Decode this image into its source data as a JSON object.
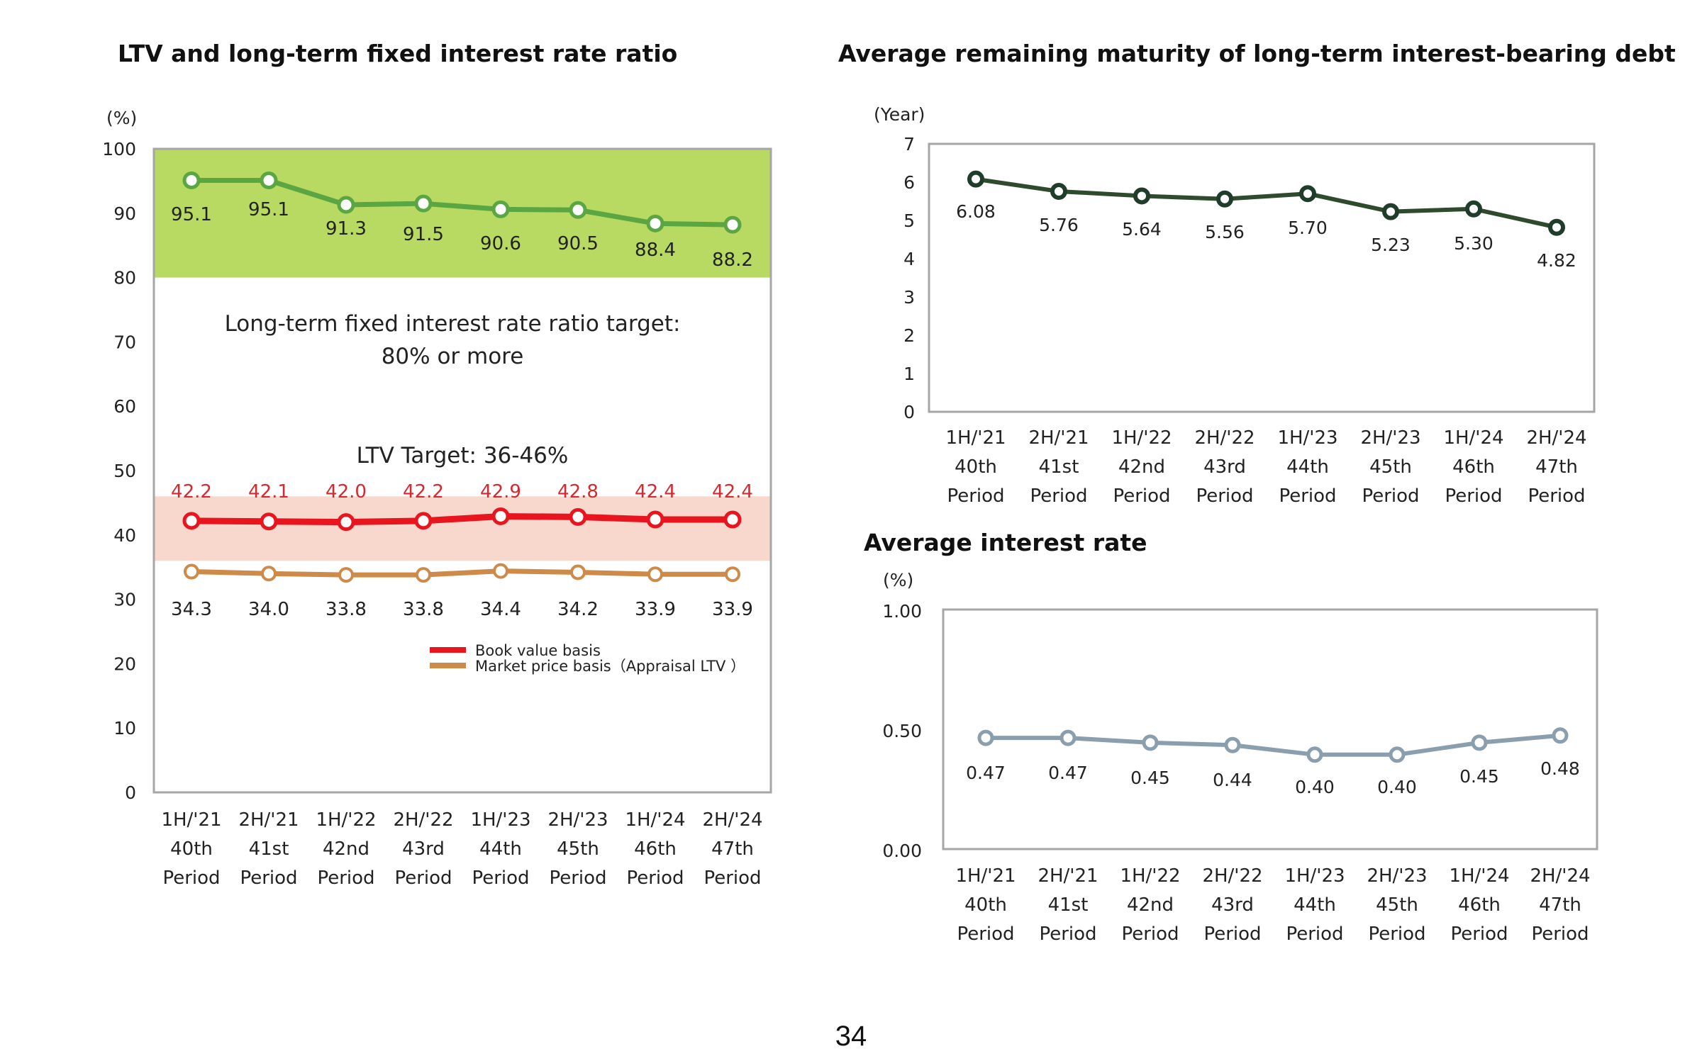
{
  "page_number": "34",
  "colors": {
    "green": "#5aa642",
    "green_band": "#b4d85a",
    "red": "#e8141e",
    "red_band": "#f8d8cc",
    "orange": "#cd8a48",
    "dark_green": "#2f4a2d",
    "dark_green_marker": "#1f3d2a",
    "blue_gray": "#8a9eae",
    "red_label": "#d8282e"
  },
  "chart_data": [
    {
      "id": "ltv",
      "type": "line",
      "title": "LTV and long-term fixed interest rate ratio",
      "y_unit": "(%)",
      "ylim": [
        0,
        100
      ],
      "y_ticks": [
        "0",
        "10",
        "20",
        "30",
        "40",
        "50",
        "60",
        "70",
        "80",
        "90",
        "100"
      ],
      "categories": [
        [
          "1H/'21",
          "40th",
          "Period"
        ],
        [
          "2H/'21",
          "41st",
          "Period"
        ],
        [
          "1H/'22",
          "42nd",
          "Period"
        ],
        [
          "2H/'22",
          "43rd",
          "Period"
        ],
        [
          "1H/'23",
          "44th",
          "Period"
        ],
        [
          "2H/'23",
          "45th",
          "Period"
        ],
        [
          "1H/'24",
          "46th",
          "Period"
        ],
        [
          "2H/'24",
          "47th",
          "Period"
        ]
      ],
      "bands": [
        {
          "from": 80,
          "to": 100,
          "kind": "green"
        },
        {
          "from": 36,
          "to": 46,
          "kind": "red"
        }
      ],
      "annotations": {
        "fixed_target_line1": "Long-term fixed interest rate ratio target:",
        "fixed_target_line2": "80% or more",
        "ltv_target": "LTV Target: 36-46%"
      },
      "series": [
        {
          "key": "fixed",
          "values": [
            95.1,
            95.1,
            91.3,
            91.5,
            90.6,
            90.5,
            88.4,
            88.2
          ],
          "labels": [
            "95.1",
            "95.1",
            "91.3",
            "91.5",
            "90.6",
            "90.5",
            "88.4",
            "88.2"
          ]
        },
        {
          "key": "book",
          "name": "Book value basis",
          "values": [
            42.2,
            42.1,
            42.0,
            42.2,
            42.9,
            42.8,
            42.4,
            42.4
          ],
          "labels": [
            "42.2",
            "42.1",
            "42.0",
            "42.2",
            "42.9",
            "42.8",
            "42.4",
            "42.4"
          ]
        },
        {
          "key": "market",
          "name": "Market price  basis（Appraisal LTV ）",
          "values": [
            34.3,
            34.0,
            33.8,
            33.8,
            34.4,
            34.2,
            33.9,
            33.9
          ],
          "labels": [
            "34.3",
            "34.0",
            "33.8",
            "33.8",
            "34.4",
            "34.2",
            "33.9",
            "33.9"
          ]
        }
      ],
      "legend": [
        "Book value basis",
        "Market price  basis（Appraisal LTV ）"
      ],
      "grid": false
    },
    {
      "id": "maturity",
      "type": "line",
      "title": "Average remaining maturity of long-term interest-bearing debt",
      "y_unit": "(Year)",
      "ylim": [
        0,
        7
      ],
      "y_ticks": [
        "0",
        "1",
        "2",
        "3",
        "4",
        "5",
        "6",
        "7"
      ],
      "categories": [
        [
          "1H/'21",
          "40th",
          "Period"
        ],
        [
          "2H/'21",
          "41st",
          "Period"
        ],
        [
          "1H/'22",
          "42nd",
          "Period"
        ],
        [
          "2H/'22",
          "43rd",
          "Period"
        ],
        [
          "1H/'23",
          "44th",
          "Period"
        ],
        [
          "2H/'23",
          "45th",
          "Period"
        ],
        [
          "1H/'24",
          "46th",
          "Period"
        ],
        [
          "2H/'24",
          "47th",
          "Period"
        ]
      ],
      "series": [
        {
          "values": [
            6.08,
            5.76,
            5.64,
            5.56,
            5.7,
            5.23,
            5.3,
            4.82
          ],
          "labels": [
            "6.08",
            "5.76",
            "5.64",
            "5.56",
            "5.70",
            "5.23",
            "5.30",
            "4.82"
          ]
        }
      ],
      "grid": false
    },
    {
      "id": "interest",
      "type": "line",
      "title": "Average interest rate",
      "y_unit": "(%)",
      "ylim": [
        0,
        1
      ],
      "y_ticks": [
        "0.00",
        "0.50",
        "1.00"
      ],
      "categories": [
        [
          "1H/'21",
          "40th",
          "Period"
        ],
        [
          "2H/'21",
          "41st",
          "Period"
        ],
        [
          "1H/'22",
          "42nd",
          "Period"
        ],
        [
          "2H/'22",
          "43rd",
          "Period"
        ],
        [
          "1H/'23",
          "44th",
          "Period"
        ],
        [
          "2H/'23",
          "45th",
          "Period"
        ],
        [
          "1H/'24",
          "46th",
          "Period"
        ],
        [
          "2H/'24",
          "47th",
          "Period"
        ]
      ],
      "series": [
        {
          "values": [
            0.47,
            0.47,
            0.45,
            0.44,
            0.4,
            0.4,
            0.45,
            0.48
          ],
          "labels": [
            "0.47",
            "0.47",
            "0.45",
            "0.44",
            "0.40",
            "0.40",
            "0.45",
            "0.48"
          ]
        }
      ],
      "grid": false
    }
  ]
}
